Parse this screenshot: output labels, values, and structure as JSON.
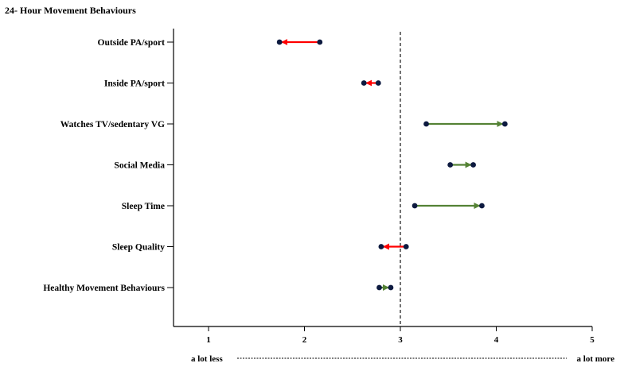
{
  "chart_data": {
    "type": "arrow",
    "title": "24- Hour Movement Behaviours",
    "xlim": [
      0.6,
      5
    ],
    "xticks": [
      1,
      2,
      3,
      4,
      5
    ],
    "reference_line_x": 3,
    "scale_label_left": "a lot less",
    "scale_label_right": "a lot more",
    "colors": {
      "decrease": "#ff0000",
      "increase": "#548235",
      "point": "#0d1a40",
      "axis": "#000000"
    },
    "rows": [
      {
        "category": "Outside PA/sport",
        "from": 2.16,
        "to": 1.74,
        "direction": "decrease"
      },
      {
        "category": "Inside PA/sport",
        "from": 2.77,
        "to": 2.62,
        "direction": "decrease"
      },
      {
        "category": "Watches TV/sedentary VG",
        "from": 3.27,
        "to": 4.09,
        "direction": "increase"
      },
      {
        "category": "Social Media",
        "from": 3.52,
        "to": 3.76,
        "direction": "increase"
      },
      {
        "category": "Sleep Time",
        "from": 3.15,
        "to": 3.85,
        "direction": "increase"
      },
      {
        "category": "Sleep Quality",
        "from": 3.06,
        "to": 2.8,
        "direction": "decrease"
      },
      {
        "category": "Healthy Movement Behaviours",
        "from": 2.78,
        "to": 2.9,
        "direction": "increase"
      }
    ]
  }
}
